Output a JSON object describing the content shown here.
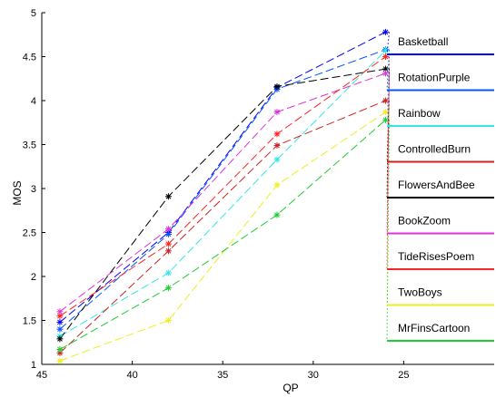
{
  "chart_data": {
    "type": "line",
    "title": "",
    "xlabel": "QP",
    "ylabel": "MOS",
    "x": [
      44,
      38,
      32,
      26
    ],
    "xlim": [
      45,
      20
    ],
    "ylim": [
      1,
      5
    ],
    "x_direction": "reversed",
    "xticks": [
      45,
      40,
      35,
      30,
      25
    ],
    "yticks": [
      1,
      1.5,
      2,
      2.5,
      3,
      3.5,
      4,
      4.5,
      5
    ],
    "xtick_labels": [
      "45",
      "40",
      "35",
      "30",
      "25"
    ],
    "ytick_labels": [
      "1",
      "1.5",
      "2",
      "2.5",
      "3",
      "3.5",
      "4",
      "4.5",
      "5"
    ],
    "grid": false,
    "legend": "right",
    "line_style": "dashed",
    "marker": "asterisk",
    "series": [
      {
        "name": "Basketball",
        "color": "#0000ff",
        "values": [
          1.48,
          2.5,
          4.15,
          4.78
        ]
      },
      {
        "name": "RotationPurple",
        "color": "#0055ff",
        "values": [
          1.4,
          2.48,
          4.13,
          4.58
        ]
      },
      {
        "name": "Rainbow",
        "color": "#33e6e6",
        "values": [
          1.32,
          2.04,
          3.33,
          4.57
        ]
      },
      {
        "name": "ControlledBurn",
        "color": "#cc2222",
        "values": [
          1.13,
          2.29,
          3.49,
          4.0
        ]
      },
      {
        "name": "FlowersAndBee",
        "color": "#000000",
        "values": [
          1.29,
          2.91,
          4.16,
          4.36
        ]
      },
      {
        "name": "BookZoom",
        "color": "#dd33dd",
        "values": [
          1.6,
          2.54,
          3.87,
          4.31
        ]
      },
      {
        "name": "TideRisesPoem",
        "color": "#ff2222",
        "values": [
          1.55,
          2.37,
          3.62,
          4.5
        ]
      },
      {
        "name": "TwoBoys",
        "color": "#eeee22",
        "values": [
          1.04,
          1.5,
          3.04,
          3.87
        ]
      },
      {
        "name": "MrFinsCartoon",
        "color": "#22cc33",
        "values": [
          1.17,
          1.87,
          2.7,
          3.78
        ]
      }
    ]
  }
}
